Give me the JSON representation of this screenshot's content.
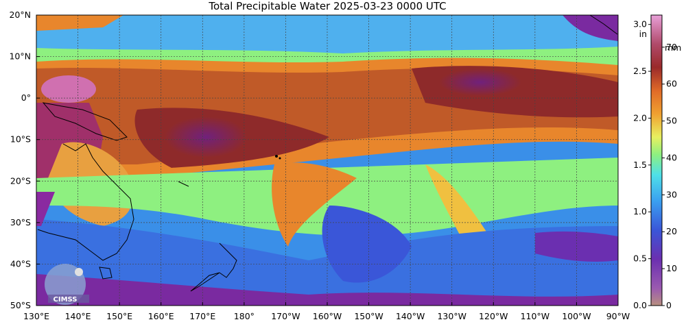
{
  "title": "Total Precipitable Water  2025-03-23 0000 UTC",
  "map": {
    "lat_labels": [
      "20°N",
      "10°N",
      "0°",
      "10°S",
      "20°S",
      "30°S",
      "40°S",
      "50°S"
    ],
    "lon_labels": [
      "130°E",
      "140°E",
      "150°E",
      "160°E",
      "170°E",
      "180°",
      "170°W",
      "160°W",
      "150°W",
      "140°W",
      "130°W",
      "120°W",
      "110°W",
      "100°W",
      "90°W"
    ],
    "lat_range": [
      -50,
      20
    ],
    "lon_range_east": [
      130,
      270
    ]
  },
  "colorbar": {
    "in_unit": "in",
    "mm_unit": "mm",
    "in_ticks": [
      "3.0",
      "2.5",
      "2.0",
      "1.5",
      "1.0",
      "0.5",
      "0.0"
    ],
    "mm_ticks": [
      "70",
      "60",
      "50",
      "40",
      "30",
      "20",
      "10",
      "0"
    ]
  },
  "logo": {
    "text": "CIMSS"
  },
  "colors": {
    "very_moist": "#8e2a2a",
    "moist": "#e8862c",
    "moderate": "#a6f07a",
    "dry": "#3a8fe8",
    "very_dry": "#6a2aa0"
  }
}
